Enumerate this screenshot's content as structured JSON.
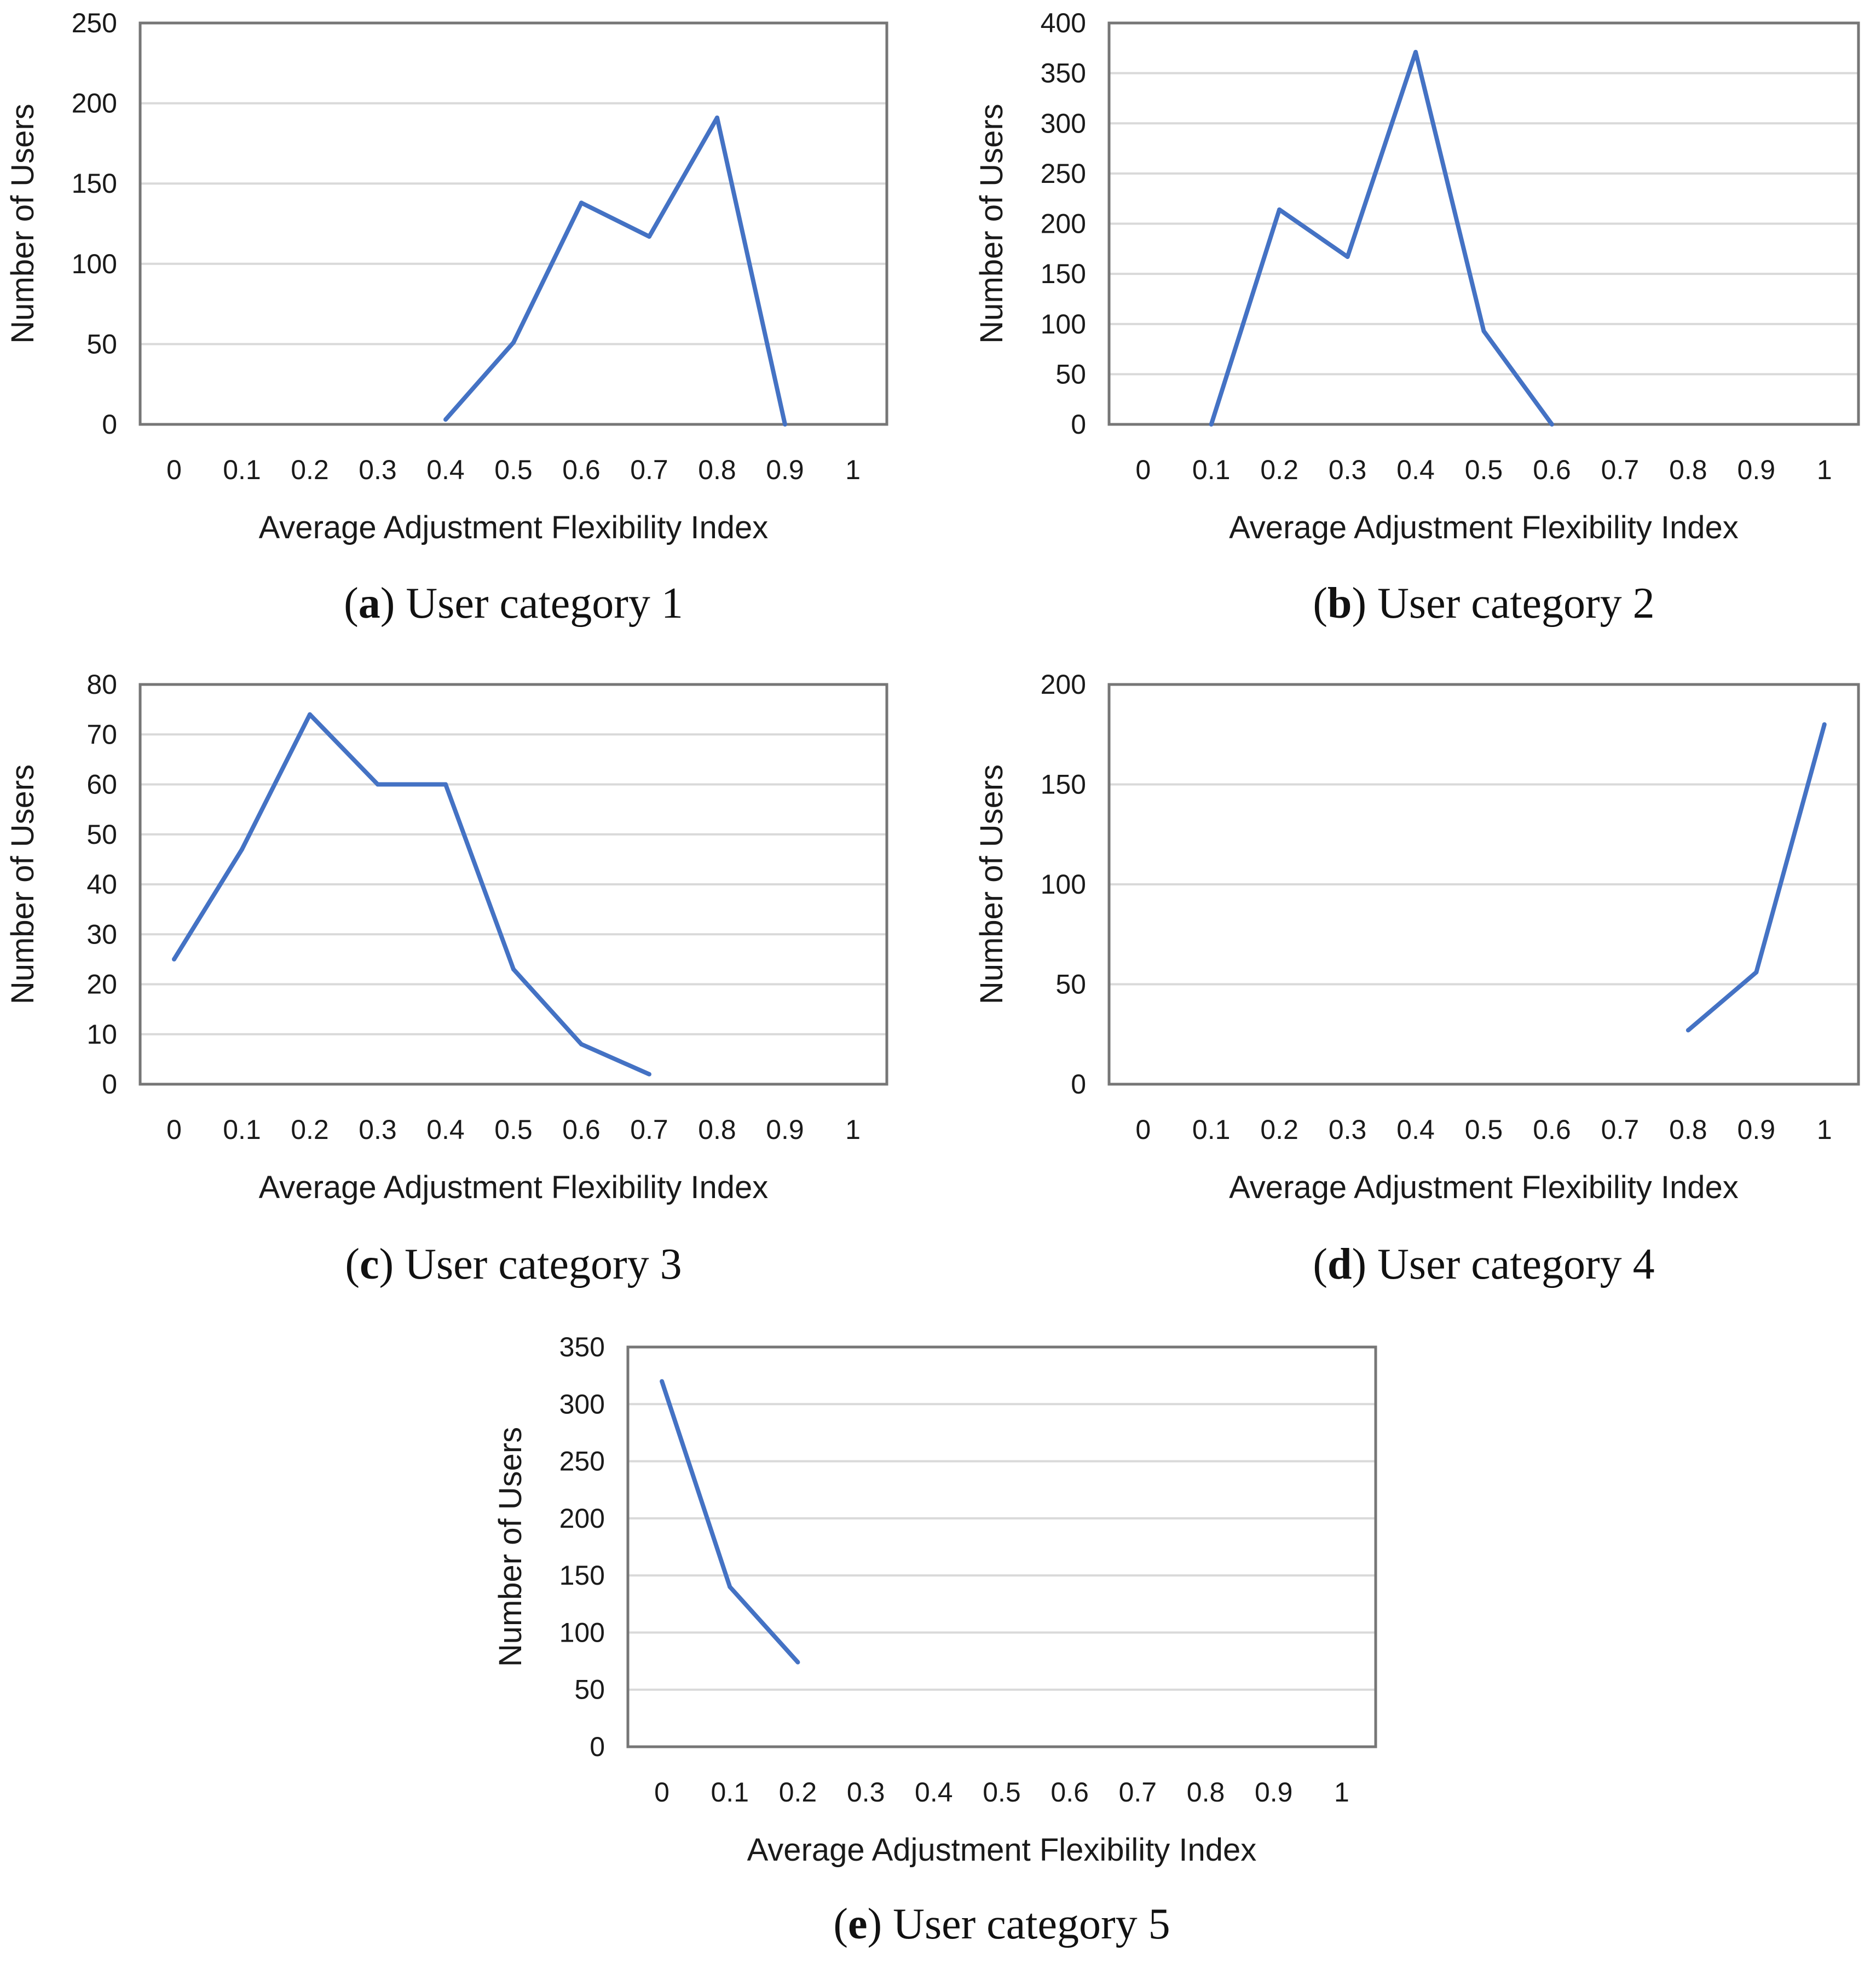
{
  "figure": {
    "colors": {
      "line": "#4472c4",
      "grid": "#d9d9d9",
      "frame": "#767676",
      "text": "#1a1a1a"
    },
    "panels": [
      {
        "id": "a",
        "caption": {
          "letter": "a",
          "open": "(",
          "close": ")",
          "text": " User category 1"
        }
      },
      {
        "id": "b",
        "caption": {
          "letter": "b",
          "open": "(",
          "close": ")",
          "text": " User category 2"
        }
      },
      {
        "id": "c",
        "caption": {
          "letter": "c",
          "open": "(",
          "close": ")",
          "text": " User category 3"
        }
      },
      {
        "id": "d",
        "caption": {
          "letter": "d",
          "open": "(",
          "close": ")",
          "text": " User category 4"
        }
      },
      {
        "id": "e",
        "caption": {
          "letter": "e",
          "open": "(",
          "close": ")",
          "text": " User category 5"
        }
      }
    ]
  },
  "chart_data": [
    {
      "type": "line",
      "panel": "a",
      "title": "",
      "xlabel": "Average Adjustment Flexibility Index",
      "ylabel": "Number of Users",
      "categories": [
        "0",
        "0.1",
        "0.2",
        "0.3",
        "0.4",
        "0.5",
        "0.6",
        "0.7",
        "0.8",
        "0.9",
        "1"
      ],
      "series": [
        {
          "name": "User category 1",
          "x": [
            0.4,
            0.5,
            0.6,
            0.7,
            0.8,
            0.9
          ],
          "values": [
            3,
            51,
            138,
            117,
            191,
            0
          ]
        }
      ],
      "yticks": [
        "0",
        "50",
        "100",
        "150",
        "200",
        "250"
      ],
      "ylim": [
        0,
        250
      ],
      "grid": true,
      "legend": "none"
    },
    {
      "type": "line",
      "panel": "b",
      "title": "",
      "xlabel": "Average Adjustment Flexibility Index",
      "ylabel": "Number of Users",
      "categories": [
        "0",
        "0.1",
        "0.2",
        "0.3",
        "0.4",
        "0.5",
        "0.6",
        "0.7",
        "0.8",
        "0.9",
        "1"
      ],
      "series": [
        {
          "name": "User category 2",
          "x": [
            0.1,
            0.2,
            0.3,
            0.4,
            0.5,
            0.6
          ],
          "values": [
            0,
            214,
            167,
            371,
            93,
            0
          ]
        }
      ],
      "yticks": [
        "0",
        "50",
        "100",
        "150",
        "200",
        "250",
        "300",
        "350",
        "400"
      ],
      "ylim": [
        0,
        400
      ],
      "grid": true,
      "legend": "none"
    },
    {
      "type": "line",
      "panel": "c",
      "title": "",
      "xlabel": "Average Adjustment Flexibility Index",
      "ylabel": "Number of Users",
      "categories": [
        "0",
        "0.1",
        "0.2",
        "0.3",
        "0.4",
        "0.5",
        "0.6",
        "0.7",
        "0.8",
        "0.9",
        "1"
      ],
      "series": [
        {
          "name": "User category 3",
          "x": [
            0,
            0.1,
            0.2,
            0.3,
            0.4,
            0.5,
            0.6,
            0.7
          ],
          "values": [
            25,
            47,
            74,
            60,
            60,
            23,
            8,
            2
          ]
        }
      ],
      "yticks": [
        "0",
        "10",
        "20",
        "30",
        "40",
        "50",
        "60",
        "70",
        "80"
      ],
      "ylim": [
        0,
        80
      ],
      "grid": true,
      "legend": "none"
    },
    {
      "type": "line",
      "panel": "d",
      "title": "",
      "xlabel": "Average Adjustment Flexibility Index",
      "ylabel": "Number of Users",
      "categories": [
        "0",
        "0.1",
        "0.2",
        "0.3",
        "0.4",
        "0.5",
        "0.6",
        "0.7",
        "0.8",
        "0.9",
        "1"
      ],
      "series": [
        {
          "name": "User category 4",
          "x": [
            0.8,
            0.9,
            1
          ],
          "values": [
            27,
            56,
            180
          ]
        }
      ],
      "yticks": [
        "0",
        "50",
        "100",
        "150",
        "200"
      ],
      "ylim": [
        0,
        200
      ],
      "grid": true,
      "legend": "none"
    },
    {
      "type": "line",
      "panel": "e",
      "title": "",
      "xlabel": "Average Adjustment Flexibility Index",
      "ylabel": "Number of Users",
      "categories": [
        "0",
        "0.1",
        "0.2",
        "0.3",
        "0.4",
        "0.5",
        "0.6",
        "0.7",
        "0.8",
        "0.9",
        "1"
      ],
      "series": [
        {
          "name": "User category 5",
          "x": [
            0,
            0.1,
            0.2
          ],
          "values": [
            320,
            140,
            74
          ]
        }
      ],
      "yticks": [
        "0",
        "50",
        "100",
        "150",
        "200",
        "250",
        "300",
        "350"
      ],
      "ylim": [
        0,
        350
      ],
      "grid": true,
      "legend": "none"
    }
  ]
}
